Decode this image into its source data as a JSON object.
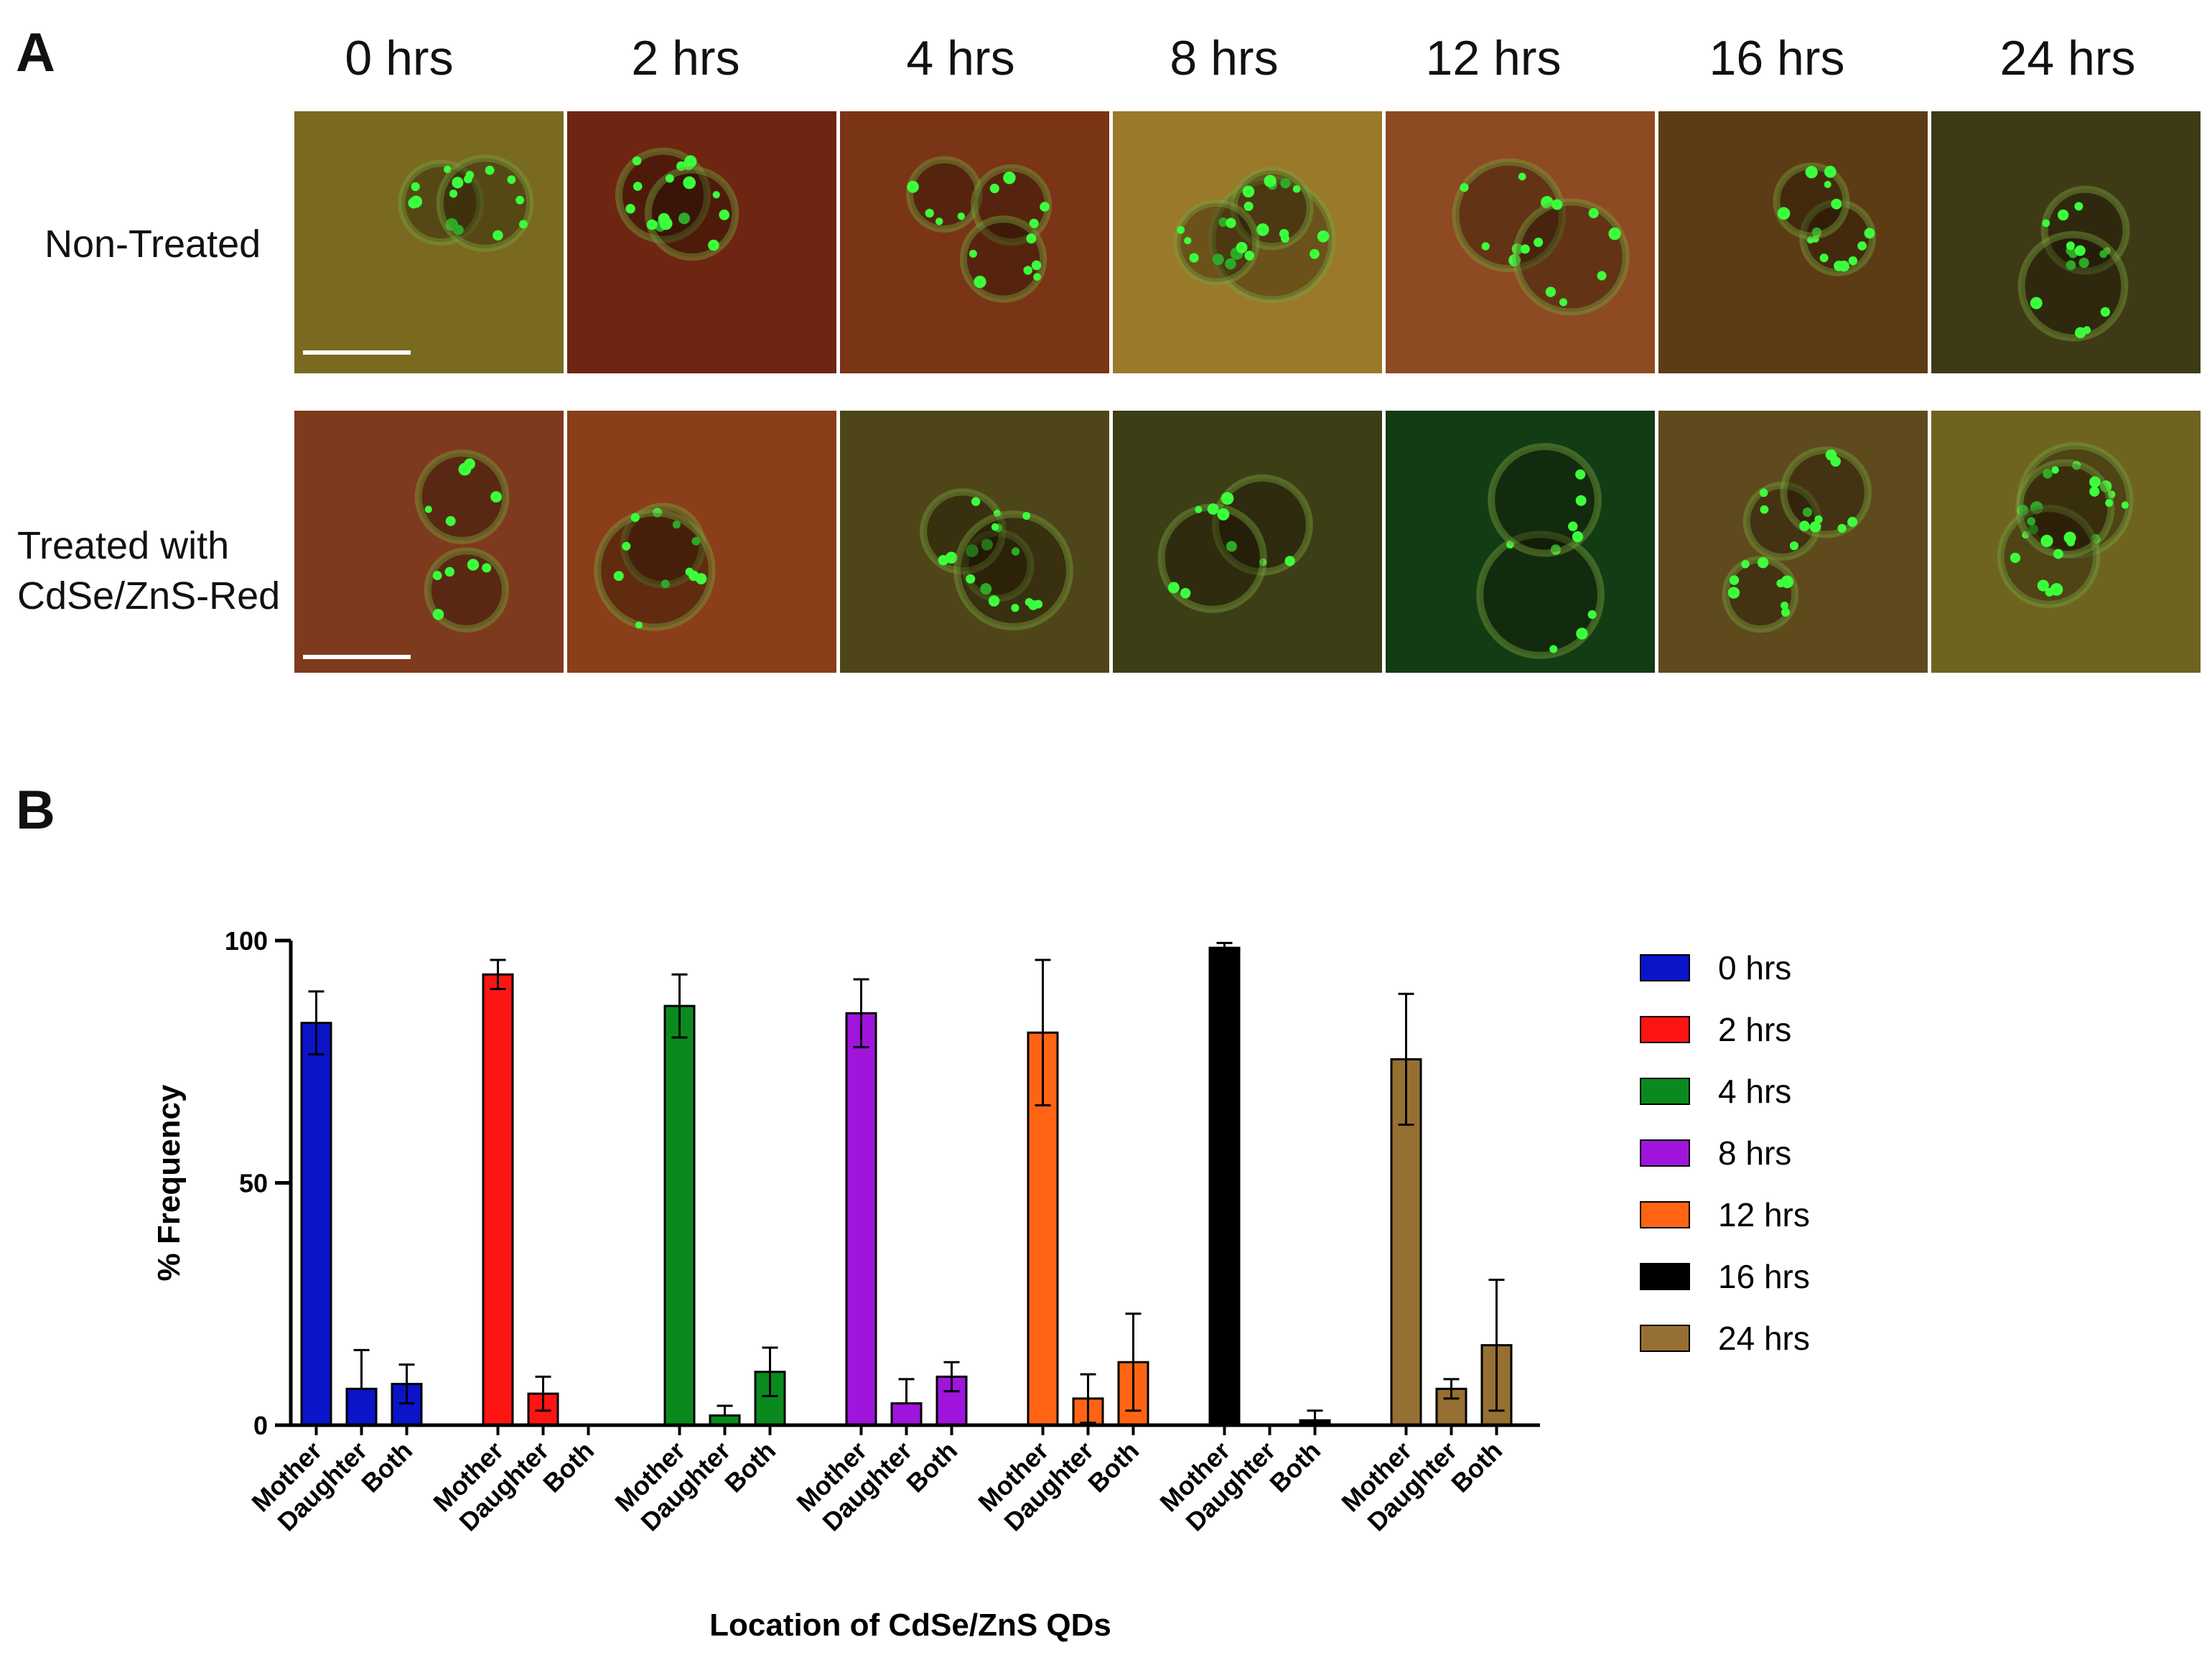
{
  "figure": {
    "panel_a_letter": "A",
    "panel_b_letter": "B",
    "time_labels": [
      "0 hrs",
      "2 hrs",
      "4 hrs",
      "8 hrs",
      "12 hrs",
      "16 hrs",
      "24 hrs"
    ],
    "row_labels": [
      "Non-Treated",
      "Treated with\nCdSe/ZnS-Red"
    ]
  },
  "micrographs": {
    "rows": [
      {
        "name": "non-treated",
        "backgrounds": [
          "#7a6a20",
          "#6e2612",
          "#7a3416",
          "#9a7a2a",
          "#8e4a22",
          "#5c3c14",
          "#3e3a16"
        ]
      },
      {
        "name": "treated",
        "backgrounds": [
          "#7e3a1c",
          "#8a3e1a",
          "#4e4618",
          "#3c3e16",
          "#123c14",
          "#5e4a1c",
          "#6e6420"
        ]
      }
    ],
    "spot_color": "#3cff3c",
    "scale_bar_color": "#ffffff"
  },
  "chart_data": {
    "type": "bar",
    "title": "",
    "xlabel": "Location of CdSe/ZnS QDs",
    "ylabel": "% Frequency",
    "ylim": [
      0,
      100
    ],
    "yticks": [
      0,
      50,
      100
    ],
    "categories": [
      "Mother",
      "Daughter",
      "Both"
    ],
    "legend_position": "right",
    "series": [
      {
        "name": "0 hrs",
        "color": "#0a14c8",
        "values": [
          83,
          7.5,
          8.5
        ],
        "errors": [
          6.5,
          8,
          4
        ]
      },
      {
        "name": "2 hrs",
        "color": "#ff1414",
        "values": [
          93,
          6.5,
          0
        ],
        "errors": [
          3,
          3.5,
          0
        ]
      },
      {
        "name": "4 hrs",
        "color": "#0a8a1e",
        "values": [
          86.5,
          2,
          11
        ],
        "errors": [
          6.5,
          2,
          5
        ]
      },
      {
        "name": "8 hrs",
        "color": "#a014dc",
        "values": [
          85,
          4.5,
          10
        ],
        "errors": [
          7,
          5,
          3
        ]
      },
      {
        "name": "12 hrs",
        "color": "#ff6414",
        "values": [
          81,
          5.5,
          13
        ],
        "errors": [
          15,
          5,
          10
        ]
      },
      {
        "name": "16 hrs",
        "color": "#000000",
        "values": [
          98.5,
          0,
          1
        ],
        "errors": [
          1,
          0,
          2
        ]
      },
      {
        "name": "24 hrs",
        "color": "#967032",
        "values": [
          75.5,
          7.5,
          16.5
        ],
        "errors": [
          13.5,
          2,
          13.5
        ]
      }
    ]
  }
}
